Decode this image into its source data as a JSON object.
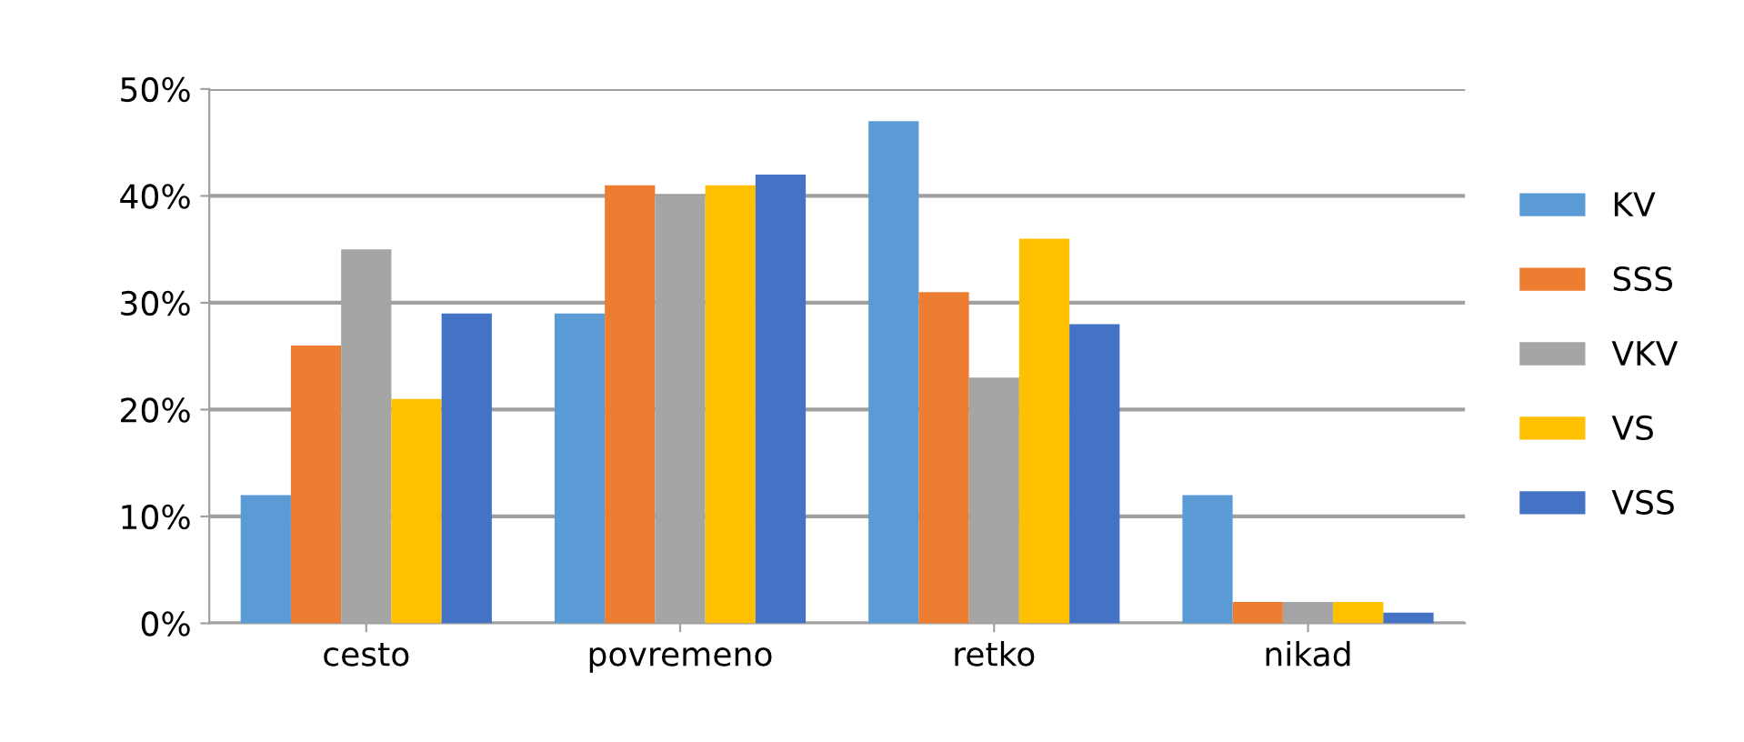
{
  "chart_data": {
    "type": "bar",
    "categories": [
      "cesto",
      "povremeno",
      "retko",
      "nikad"
    ],
    "series": [
      {
        "name": "KV",
        "color": "#5b9bd5",
        "values": [
          12,
          29,
          47,
          12
        ]
      },
      {
        "name": "SSS",
        "color": "#ed7d31",
        "values": [
          26,
          41,
          31,
          2
        ]
      },
      {
        "name": "VKV",
        "color": "#a5a5a5",
        "values": [
          35,
          40,
          23,
          2
        ]
      },
      {
        "name": "VS",
        "color": "#ffc000",
        "values": [
          21,
          41,
          36,
          2
        ]
      },
      {
        "name": "VSS",
        "color": "#4472c4",
        "values": [
          29,
          42,
          28,
          1
        ]
      }
    ],
    "ylim": [
      0,
      50
    ],
    "yticks": [
      {
        "value": 0,
        "label": "0%"
      },
      {
        "value": 10,
        "label": "10%"
      },
      {
        "value": 20,
        "label": "20%"
      },
      {
        "value": 30,
        "label": "30%"
      },
      {
        "value": 40,
        "label": "40%"
      },
      {
        "value": 50,
        "label": "50%"
      }
    ],
    "grid": "y",
    "legend": "right"
  }
}
